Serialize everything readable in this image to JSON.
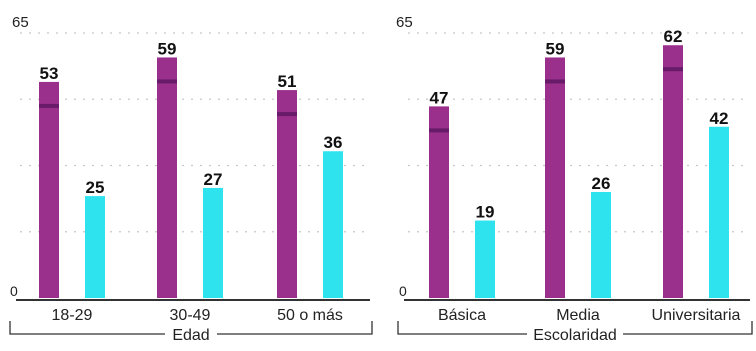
{
  "colors": {
    "purple": "#9b2f8c",
    "purple_band": "#5e1763",
    "cyan": "#2fe3ee",
    "text": "#222222",
    "grid": "#9a9a9a",
    "background": "#ffffff"
  },
  "chart_data": [
    {
      "type": "bar",
      "xlabel": "Edad",
      "ylabel": "",
      "ylim": [
        0,
        65
      ],
      "y_ticks_shown": [
        "0",
        "65"
      ],
      "grid": true,
      "categories": [
        "18-29",
        "30-49",
        "50 o más"
      ],
      "series": [
        {
          "color": "#9b2f8c",
          "values": [
            53,
            59,
            51
          ]
        },
        {
          "color": "#2fe3ee",
          "values": [
            25,
            27,
            36
          ]
        }
      ]
    },
    {
      "type": "bar",
      "xlabel": "Escolaridad",
      "ylabel": "",
      "ylim": [
        0,
        65
      ],
      "y_ticks_shown": [
        "0",
        "65"
      ],
      "grid": true,
      "categories": [
        "Básica",
        "Media",
        "Universitaria"
      ],
      "series": [
        {
          "color": "#9b2f8c",
          "values": [
            47,
            59,
            62
          ]
        },
        {
          "color": "#2fe3ee",
          "values": [
            19,
            26,
            42
          ]
        }
      ]
    }
  ]
}
